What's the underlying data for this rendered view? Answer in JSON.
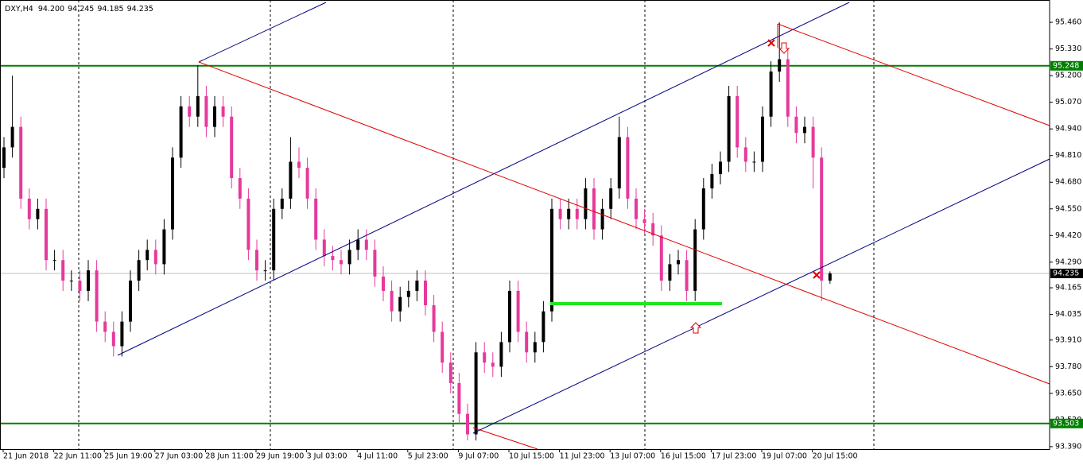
{
  "chart_data": {
    "type": "candlestick",
    "symbol": "DXY,H4",
    "ohlc_label": [
      "94.200",
      "94.245",
      "94.185",
      "94.235"
    ],
    "x_labels": [
      "21 Jun 2018",
      "22 Jun 11:00",
      "25 Jun 19:00",
      "27 Jun 03:00",
      "28 Jun 11:00",
      "29 Jun 19:00",
      "3 Jul 03:00",
      "4 Jul 11:00",
      "5 Jul 23:00",
      "9 Jul 07:00",
      "10 Jul 15:00",
      "11 Jul 23:00",
      "13 Jul 07:00",
      "16 Jul 15:00",
      "17 Jul 23:00",
      "19 Jul 07:00",
      "20 Jul 15:00"
    ],
    "ylim": [
      93.378,
      95.569
    ],
    "yticks": [
      {
        "value": 95.46,
        "label": "95.460"
      },
      {
        "value": 95.33,
        "label": "95.330"
      },
      {
        "value": 95.2,
        "label": "95.200"
      },
      {
        "value": 95.07,
        "label": "95.070"
      },
      {
        "value": 94.94,
        "label": "94.940"
      },
      {
        "value": 94.81,
        "label": "94.810"
      },
      {
        "value": 94.68,
        "label": "94.680"
      },
      {
        "value": 94.55,
        "label": "94.550"
      },
      {
        "value": 94.42,
        "label": "94.420"
      },
      {
        "value": 94.29,
        "label": "94.290"
      },
      {
        "value": 94.165,
        "label": "94.165"
      },
      {
        "value": 94.035,
        "label": "94.035"
      },
      {
        "value": 93.91,
        "label": "93.910"
      },
      {
        "value": 93.78,
        "label": "93.780"
      },
      {
        "value": 93.65,
        "label": "93.650"
      },
      {
        "value": 93.52,
        "label": "93.520"
      },
      {
        "value": 93.39,
        "label": "93.390"
      }
    ],
    "up_color": "#000000",
    "down_color": "#e6399b",
    "hlines": [
      {
        "value": 95.248,
        "label": "95.248",
        "color": "#008000"
      },
      {
        "value": 93.503,
        "label": "93.503",
        "color": "#008000"
      }
    ],
    "current_price": {
      "value": 94.235,
      "label": "94.235",
      "color": "#c0c0c0"
    },
    "candles": {
      "open": [
        94.75,
        94.85,
        94.95,
        94.6,
        94.5,
        94.55,
        94.3,
        94.3,
        94.2,
        94.2,
        94.15,
        94.25,
        94.0,
        93.95,
        93.88,
        94.0,
        94.2,
        94.3,
        94.35,
        94.28,
        94.45,
        94.8,
        95.05,
        95.0,
        95.1,
        94.95,
        95.05,
        95.0,
        94.7,
        94.6,
        94.35,
        94.25,
        94.25,
        94.55,
        94.6,
        94.78,
        94.75,
        94.6,
        94.4,
        94.32,
        94.3,
        94.28,
        94.35,
        94.4,
        94.35,
        94.22,
        94.15,
        94.05,
        94.12,
        94.15,
        94.2,
        94.08,
        93.95,
        93.8,
        93.7,
        93.55,
        93.45,
        93.85,
        93.8,
        93.78,
        93.9,
        94.15,
        93.95,
        93.85,
        93.9,
        94.05,
        94.55,
        94.5,
        94.55,
        94.5,
        94.65,
        94.45,
        94.55,
        94.65,
        94.9,
        94.6,
        94.5,
        94.48,
        94.42,
        94.2,
        94.28,
        94.3,
        94.15,
        94.45,
        94.65,
        94.72,
        94.78,
        95.1,
        94.85,
        94.78,
        94.78,
        95.0,
        95.22,
        95.28,
        95.0,
        94.92,
        94.95,
        94.8,
        94.2
      ],
      "high": [
        94.9,
        95.2,
        95.0,
        94.65,
        94.6,
        94.6,
        94.35,
        94.35,
        94.25,
        94.25,
        94.3,
        94.3,
        94.05,
        94.0,
        94.05,
        94.25,
        94.35,
        94.4,
        94.4,
        94.5,
        94.85,
        95.1,
        95.1,
        95.25,
        95.15,
        95.1,
        95.1,
        95.05,
        94.75,
        94.65,
        94.4,
        94.3,
        94.6,
        94.65,
        94.9,
        94.85,
        94.8,
        94.65,
        94.45,
        94.37,
        94.35,
        94.4,
        94.45,
        94.45,
        94.4,
        94.27,
        94.2,
        94.17,
        94.2,
        94.25,
        94.25,
        94.13,
        94.0,
        93.85,
        93.75,
        93.6,
        93.9,
        93.9,
        93.85,
        93.95,
        94.2,
        94.2,
        94.0,
        93.95,
        94.1,
        94.6,
        94.6,
        94.6,
        94.6,
        94.7,
        94.7,
        94.6,
        94.7,
        95.0,
        94.95,
        94.65,
        94.55,
        94.53,
        94.47,
        94.33,
        94.35,
        94.35,
        94.5,
        94.7,
        94.77,
        94.83,
        95.15,
        95.15,
        94.9,
        94.83,
        95.05,
        95.27,
        95.46,
        95.33,
        95.05,
        95.0,
        95.0,
        94.85,
        94.245
      ],
      "low": [
        94.7,
        94.8,
        94.55,
        94.45,
        94.45,
        94.25,
        94.25,
        94.15,
        94.15,
        94.1,
        94.1,
        93.95,
        93.9,
        93.83,
        93.83,
        93.95,
        94.15,
        94.25,
        94.23,
        94.23,
        94.4,
        94.75,
        94.95,
        94.95,
        94.9,
        94.9,
        94.95,
        94.65,
        94.55,
        94.3,
        94.2,
        94.2,
        94.2,
        94.5,
        94.55,
        94.7,
        94.55,
        94.35,
        94.27,
        94.25,
        94.23,
        94.23,
        94.3,
        94.3,
        94.17,
        94.1,
        94.0,
        94.0,
        94.07,
        94.1,
        94.03,
        93.9,
        93.75,
        93.65,
        93.5,
        93.42,
        93.42,
        93.75,
        93.73,
        93.73,
        93.85,
        93.9,
        93.8,
        93.8,
        93.85,
        94.0,
        94.45,
        94.45,
        94.45,
        94.45,
        94.4,
        94.4,
        94.5,
        94.6,
        94.55,
        94.45,
        94.43,
        94.37,
        94.15,
        94.15,
        94.23,
        94.1,
        94.1,
        94.4,
        94.6,
        94.67,
        94.73,
        94.8,
        94.73,
        94.73,
        94.73,
        94.95,
        95.17,
        94.95,
        94.87,
        94.87,
        94.65,
        94.1,
        94.185
      ],
      "close": [
        94.85,
        94.95,
        94.6,
        94.5,
        94.55,
        94.3,
        94.3,
        94.2,
        94.2,
        94.15,
        94.25,
        94.0,
        93.95,
        93.88,
        94.0,
        94.2,
        94.3,
        94.35,
        94.28,
        94.45,
        94.8,
        95.05,
        95.0,
        95.1,
        94.95,
        95.05,
        95.0,
        94.7,
        94.6,
        94.35,
        94.25,
        94.25,
        94.55,
        94.6,
        94.78,
        94.75,
        94.6,
        94.4,
        94.32,
        94.3,
        94.28,
        94.35,
        94.4,
        94.35,
        94.22,
        94.15,
        94.05,
        94.12,
        94.15,
        94.2,
        94.08,
        93.95,
        93.8,
        93.7,
        93.55,
        93.45,
        93.85,
        93.8,
        93.78,
        93.9,
        94.15,
        93.95,
        93.85,
        93.9,
        94.05,
        94.55,
        94.5,
        94.55,
        94.5,
        94.65,
        94.45,
        94.55,
        94.65,
        94.9,
        94.6,
        94.5,
        94.48,
        94.42,
        94.2,
        94.28,
        94.3,
        94.15,
        94.45,
        94.65,
        94.72,
        94.78,
        95.1,
        94.85,
        94.78,
        94.78,
        95.0,
        95.22,
        95.28,
        95.0,
        94.92,
        94.95,
        94.8,
        94.2,
        94.235
      ]
    }
  }
}
